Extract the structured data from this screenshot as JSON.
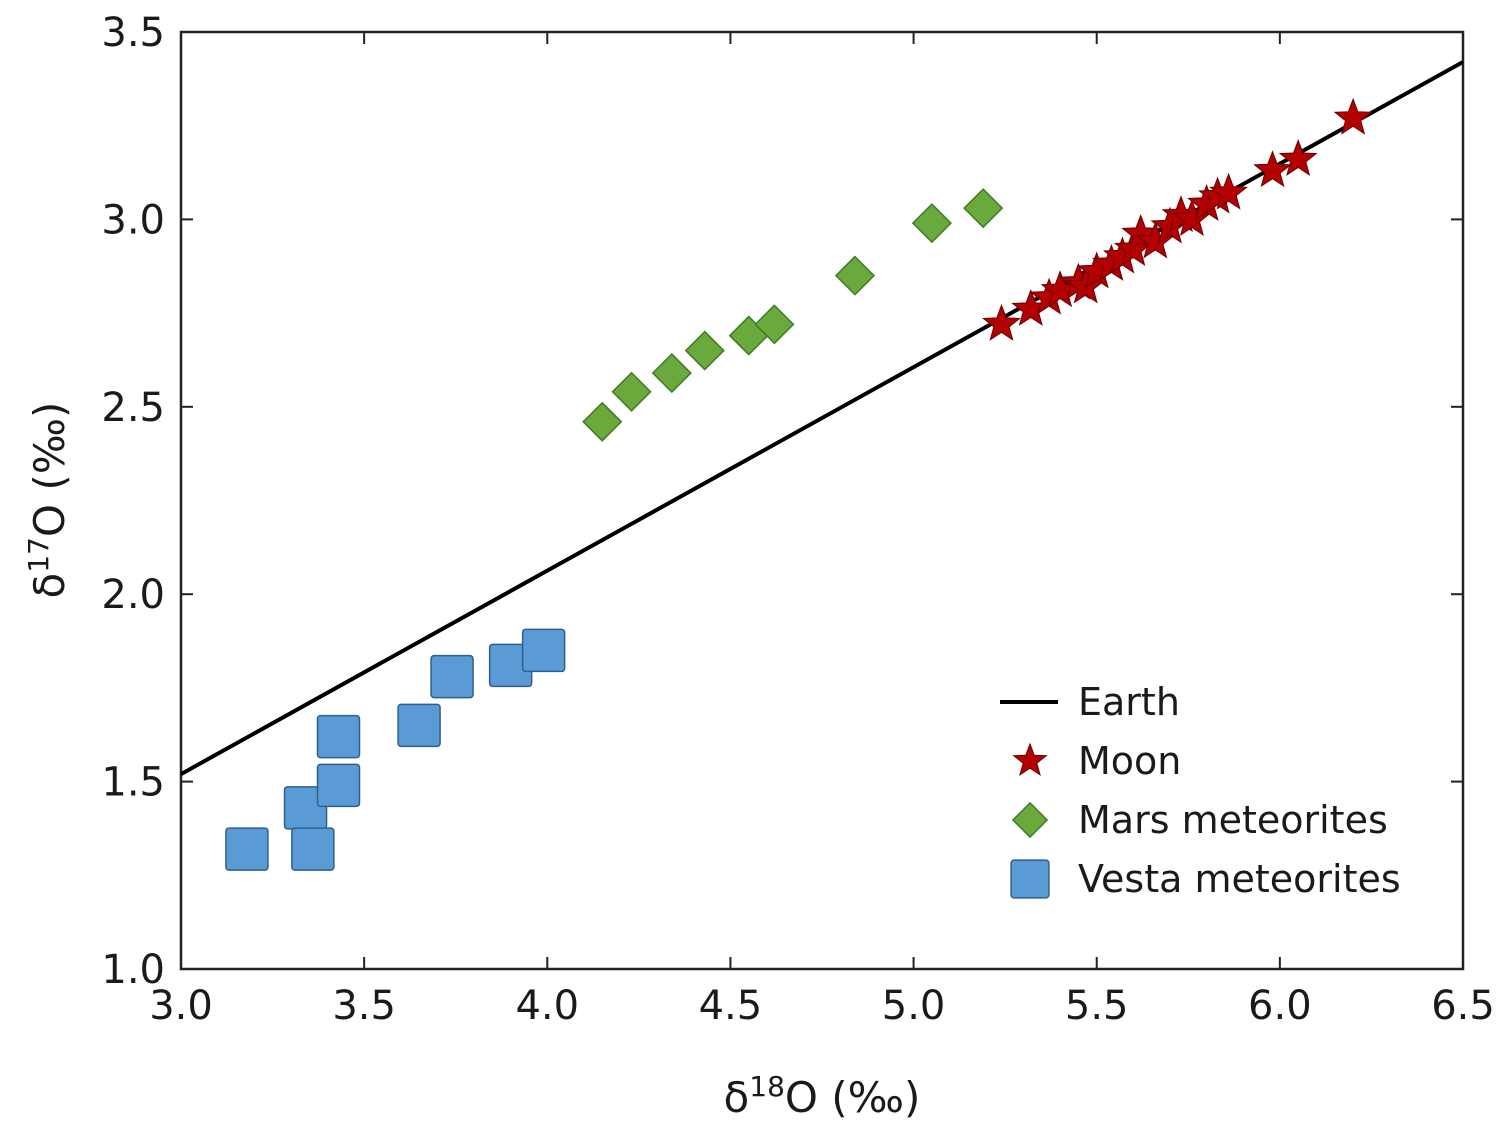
{
  "chart_data": {
    "type": "scatter",
    "xlabel_main": "δ",
    "xlabel_sup": "18",
    "xlabel_rest": "O (‰)",
    "ylabel_main": "δ",
    "ylabel_sup": "17",
    "ylabel_rest": "O (‰)",
    "xlim": [
      3.0,
      6.5
    ],
    "ylim": [
      1.0,
      3.5
    ],
    "x_ticks": [
      "3.0",
      "3.5",
      "4.0",
      "4.5",
      "5.0",
      "5.5",
      "6.0",
      "6.5"
    ],
    "y_ticks": [
      "1.0",
      "1.5",
      "2.0",
      "2.5",
      "3.0",
      "3.5"
    ],
    "grid": false,
    "legend_position": "bottom-right",
    "series": [
      {
        "name": "Earth",
        "kind": "line",
        "color": "#000000",
        "points": [
          [
            3.0,
            1.52
          ],
          [
            6.5,
            3.42
          ]
        ]
      },
      {
        "name": "Moon",
        "kind": "star",
        "color": "#b30000",
        "points": [
          [
            5.24,
            2.72
          ],
          [
            5.32,
            2.76
          ],
          [
            5.37,
            2.79
          ],
          [
            5.4,
            2.81
          ],
          [
            5.45,
            2.83
          ],
          [
            5.47,
            2.82
          ],
          [
            5.5,
            2.86
          ],
          [
            5.54,
            2.88
          ],
          [
            5.57,
            2.9
          ],
          [
            5.6,
            2.92
          ],
          [
            5.62,
            2.96
          ],
          [
            5.66,
            2.94
          ],
          [
            5.7,
            2.98
          ],
          [
            5.73,
            3.01
          ],
          [
            5.76,
            3.0
          ],
          [
            5.8,
            3.04
          ],
          [
            5.83,
            3.06
          ],
          [
            5.86,
            3.07
          ],
          [
            5.98,
            3.13
          ],
          [
            6.05,
            3.16
          ],
          [
            6.2,
            3.27
          ]
        ]
      },
      {
        "name": "Mars meteorites",
        "kind": "diamond",
        "color": "#6aaa3c",
        "points": [
          [
            4.15,
            2.46
          ],
          [
            4.23,
            2.54
          ],
          [
            4.34,
            2.59
          ],
          [
            4.43,
            2.65
          ],
          [
            4.55,
            2.69
          ],
          [
            4.62,
            2.72
          ],
          [
            4.84,
            2.85
          ],
          [
            5.05,
            2.99
          ],
          [
            5.19,
            3.03
          ]
        ]
      },
      {
        "name": "Vesta meteorites",
        "kind": "square",
        "color": "#5b9bd5",
        "points": [
          [
            3.18,
            1.32
          ],
          [
            3.34,
            1.43
          ],
          [
            3.36,
            1.32
          ],
          [
            3.43,
            1.49
          ],
          [
            3.43,
            1.62
          ],
          [
            3.65,
            1.65
          ],
          [
            3.74,
            1.78
          ],
          [
            3.9,
            1.81
          ],
          [
            3.99,
            1.85
          ]
        ]
      }
    ]
  }
}
